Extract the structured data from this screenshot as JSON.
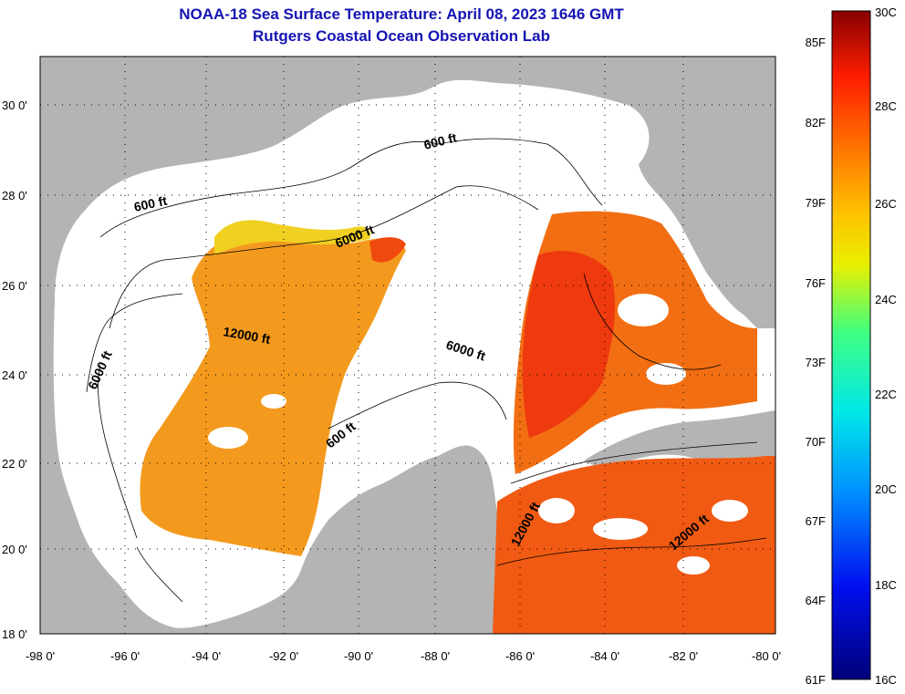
{
  "title": "NOAA-18 Sea Surface Temperature:  April 08, 2023 1646 GMT",
  "subtitle": "Rutgers Coastal Ocean Observation Lab",
  "lat_labels": [
    "30 0'",
    "28 0'",
    "26 0'",
    "24 0'",
    "22 0'",
    "20 0'",
    "18 0'"
  ],
  "lon_labels": [
    "-98 0'",
    "-96 0'",
    "-94 0'",
    "-92 0'",
    "-90 0'",
    "-88 0'",
    "-86 0'",
    "-84 0'",
    "-82 0'",
    "-80 0'"
  ],
  "contour_labels": [
    "600 ft",
    "600 ft",
    "600 ft",
    "6000 ft",
    "6000 ft",
    "6000 ft",
    "12000 ft",
    "12000 ft",
    "12000 ft"
  ],
  "colorbar": {
    "fahrenheit": [
      "85F",
      "82F",
      "79F",
      "76F",
      "73F",
      "70F",
      "67F",
      "64F",
      "61F"
    ],
    "celsius": [
      "30C",
      "28C",
      "26C",
      "24C",
      "22C",
      "20C",
      "18C",
      "16C"
    ]
  },
  "colors": {
    "title": "#1414b4",
    "land": "#b4b4b4",
    "ocean_nodata": "#ffffff"
  }
}
